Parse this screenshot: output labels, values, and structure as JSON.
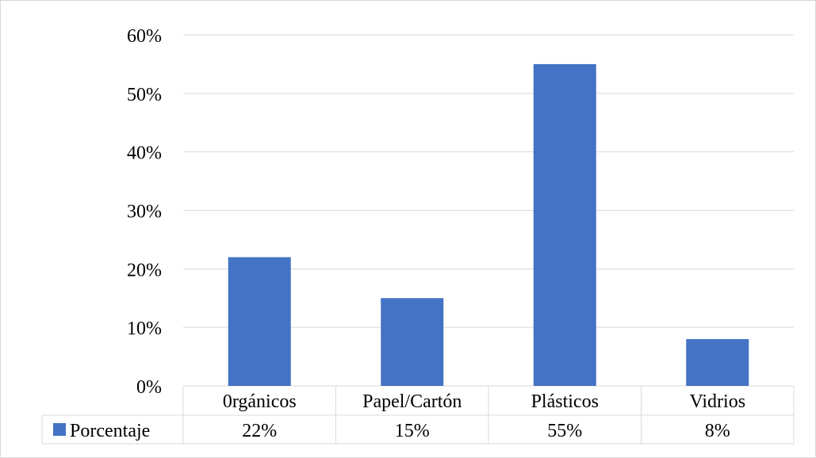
{
  "chart_data": {
    "type": "bar",
    "title": "",
    "xlabel": "",
    "ylabel": "",
    "categories": [
      "0rgánicos",
      "Papel/Cartón",
      "Plásticos",
      "Vidrios"
    ],
    "series": [
      {
        "name": "Porcentaje",
        "values": [
          22,
          15,
          55,
          8
        ],
        "value_labels": [
          "22%",
          "15%",
          "55%",
          "8%"
        ],
        "color": "#4472c4"
      }
    ],
    "ylim": [
      0,
      60
    ],
    "yticks": [
      0,
      10,
      20,
      30,
      40,
      50,
      60
    ],
    "ytick_labels": [
      "0%",
      "10%",
      "20%",
      "30%",
      "40%",
      "50%",
      "60%"
    ],
    "grid": true,
    "legend": "data-table",
    "gridline_color": "#d9d9d9"
  }
}
